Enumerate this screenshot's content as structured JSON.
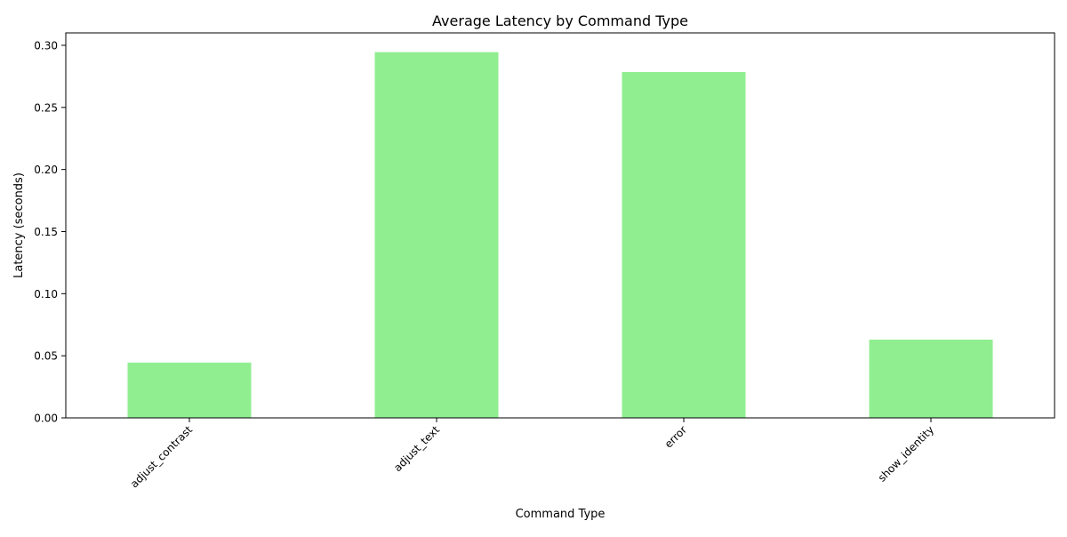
{
  "chart_data": {
    "type": "bar",
    "title": "Average Latency by Command Type",
    "xlabel": "Command Type",
    "ylabel": "Latency (seconds)",
    "categories": [
      "adjust_contrast",
      "adjust_text",
      "error",
      "show_identity"
    ],
    "values": [
      0.0445,
      0.2945,
      0.2785,
      0.063
    ],
    "ylim": [
      0,
      0.31
    ],
    "yticks": [
      "0.00",
      "0.05",
      "0.10",
      "0.15",
      "0.20",
      "0.25",
      "0.30"
    ],
    "bar_color": "#90ee90",
    "grid": false,
    "legend": "none"
  }
}
